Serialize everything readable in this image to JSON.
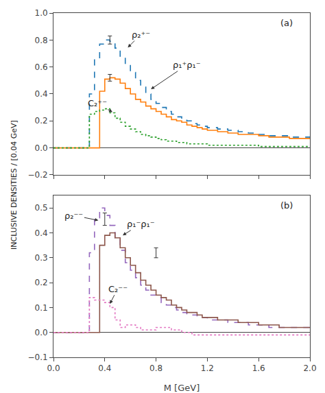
{
  "chart_data": [
    {
      "type": "step",
      "label": "(a)",
      "ylabel": "INCLUSIVE DENSITIES / [0.04 GeV]",
      "xlim": [
        0,
        2.0
      ],
      "xticks": [
        {
          "value": 0,
          "label": "0.0"
        },
        0.4,
        0.8,
        1.2,
        1.6,
        {
          "value": 2.0,
          "label": "2.0"
        }
      ],
      "ylim": [
        -0.2,
        1.0
      ],
      "yticks": [
        -0.2,
        {
          "value": 0,
          "label": "0.0"
        },
        0.2,
        0.4,
        0.6,
        0.8,
        {
          "value": 1.0,
          "label": "1.0"
        }
      ],
      "grid": false,
      "tick_labels": "y",
      "x": [
        0,
        0.04,
        0.08,
        0.12,
        0.16,
        0.2,
        0.24,
        0.28,
        0.32,
        0.36,
        0.4,
        0.44,
        0.48,
        0.52,
        0.56,
        0.6,
        0.64,
        0.68,
        0.72,
        0.76,
        0.8,
        0.84,
        0.88,
        0.92,
        0.96,
        1.0,
        1.04,
        1.08,
        1.12,
        1.16,
        1.2,
        1.24,
        1.28,
        1.32,
        1.36,
        1.4,
        1.44,
        1.48,
        1.52,
        1.56,
        1.6,
        1.64,
        1.68,
        1.72,
        1.76,
        1.8,
        1.84,
        1.88,
        1.92,
        1.96,
        2.0
      ],
      "series": [
        {
          "line_style": "dashed",
          "values": [
            0,
            0,
            0,
            0,
            0,
            0,
            0,
            0.4,
            0.66,
            0.77,
            0.8,
            0.79,
            0.74,
            0.68,
            0.62,
            0.56,
            0.5,
            0.45,
            0.4,
            0.36,
            0.33,
            0.3,
            0.27,
            0.25,
            0.23,
            0.21,
            0.2,
            0.18,
            0.17,
            0.16,
            0.15,
            0.15,
            0.14,
            0.14,
            0.13,
            0.13,
            0.12,
            0.12,
            0.11,
            0.11,
            0.1,
            0.1,
            0.09,
            0.09,
            0.09,
            0.09,
            0.08,
            0.08,
            0.08,
            0.08,
            0.08
          ]
        },
        {
          "line_style": "solid",
          "values": [
            0,
            0,
            0,
            0,
            0,
            0,
            0,
            0,
            0,
            0.42,
            0.51,
            0.52,
            0.51,
            0.48,
            0.44,
            0.4,
            0.36,
            0.34,
            0.31,
            0.29,
            0.27,
            0.25,
            0.23,
            0.21,
            0.2,
            0.19,
            0.17,
            0.16,
            0.15,
            0.14,
            0.13,
            0.13,
            0.12,
            0.12,
            0.11,
            0.11,
            0.1,
            0.1,
            0.1,
            0.1,
            0.09,
            0.09,
            0.08,
            0.08,
            0.08,
            0.08,
            0.07,
            0.07,
            0.07,
            0.07,
            0.07
          ]
        },
        {
          "line_style": "dotted",
          "values": [
            0,
            0,
            0,
            0,
            0,
            0,
            0,
            0.25,
            0.27,
            0.28,
            0.29,
            0.26,
            0.22,
            0.19,
            0.16,
            0.14,
            0.12,
            0.1,
            0.09,
            0.08,
            0.07,
            0.06,
            0.05,
            0.05,
            0.04,
            0.04,
            0.03,
            0.03,
            0.03,
            0.03,
            0.02,
            0.02,
            0.02,
            0.02,
            0.02,
            0.02,
            0.02,
            0.02,
            0.02,
            0.02,
            0.01,
            0.01,
            0.01,
            0.01,
            0.01,
            0.01,
            0.01,
            0.01,
            0.01,
            0.01,
            0.01
          ]
        }
      ],
      "errors": [
        {
          "x": 0.44,
          "y": 0.8,
          "error": 0.03
        },
        {
          "x": 0.44,
          "y": 0.52,
          "error": 0.025
        }
      ],
      "annotations": [
        {
          "text": "ρ₂⁺⁻",
          "x": 0.58,
          "y": 0.745,
          "text_x": 0.68,
          "text_y": 0.84
        },
        {
          "text": "ρ₁⁺ρ₁⁻",
          "x": 0.76,
          "y": 0.435,
          "text_x": 1.04,
          "text_y": 0.615
        },
        {
          "text": "C₂⁺⁻",
          "x": 0.46,
          "y": 0.265,
          "text_x": 0.34,
          "text_y": 0.33
        }
      ]
    },
    {
      "type": "step",
      "label": "(b)",
      "xlabel": "M [GeV]",
      "xlim": [
        0,
        2.0
      ],
      "xticks": [
        {
          "value": 0,
          "label": "0.0"
        },
        0.4,
        0.8,
        1.2,
        1.6,
        {
          "value": 2.0,
          "label": "2.0"
        }
      ],
      "ylim": [
        -0.1,
        0.55
      ],
      "yticks": [
        -0.1,
        {
          "value": 0,
          "label": "0.0"
        },
        0.1,
        0.2,
        0.3,
        0.4,
        0.5
      ],
      "grid": false,
      "x": [
        0,
        0.04,
        0.08,
        0.12,
        0.16,
        0.2,
        0.24,
        0.28,
        0.32,
        0.36,
        0.4,
        0.44,
        0.48,
        0.52,
        0.56,
        0.6,
        0.64,
        0.68,
        0.72,
        0.76,
        0.8,
        0.84,
        0.88,
        0.92,
        0.96,
        1.0,
        1.04,
        1.08,
        1.12,
        1.16,
        1.2,
        1.24,
        1.28,
        1.32,
        1.36,
        1.4,
        1.44,
        1.48,
        1.52,
        1.56,
        1.6,
        1.64,
        1.68,
        1.72,
        1.76,
        1.8,
        1.84,
        1.88,
        1.92,
        1.96,
        2.0
      ],
      "series": [
        {
          "line_style": "dashed",
          "values": [
            0,
            0,
            0,
            0,
            0,
            0,
            0,
            0.32,
            0.46,
            0.5,
            0.47,
            0.43,
            0.38,
            0.33,
            0.28,
            0.25,
            0.22,
            0.19,
            0.17,
            0.15,
            0.14,
            0.12,
            0.11,
            0.1,
            0.09,
            0.08,
            0.07,
            0.07,
            0.06,
            0.06,
            0.05,
            0.05,
            0.05,
            0.05,
            0.04,
            0.04,
            0.04,
            0.04,
            0.03,
            0.03,
            0.03,
            0.03,
            0.02,
            0.02,
            0.02,
            0.02,
            0.02,
            0.02,
            0.02,
            0.02,
            0.02
          ]
        },
        {
          "line_style": "solid",
          "values": [
            0,
            0,
            0,
            0,
            0,
            0,
            0,
            0,
            0,
            0.35,
            0.39,
            0.4,
            0.38,
            0.34,
            0.3,
            0.27,
            0.24,
            0.21,
            0.19,
            0.17,
            0.15,
            0.14,
            0.13,
            0.11,
            0.1,
            0.09,
            0.08,
            0.08,
            0.07,
            0.06,
            0.06,
            0.06,
            0.05,
            0.05,
            0.05,
            0.05,
            0.04,
            0.04,
            0.04,
            0.04,
            0.03,
            0.03,
            0.03,
            0.03,
            0.02,
            0.02,
            0.02,
            0.02,
            0.02,
            0.02,
            0.02
          ]
        },
        {
          "line_style": "dotted",
          "values": [
            0,
            0,
            0,
            0,
            0,
            0,
            0,
            0.14,
            0.13,
            0.13,
            0.12,
            0.1,
            0.05,
            0.02,
            0.03,
            0.03,
            0.02,
            0.01,
            0.01,
            0.01,
            0.02,
            0.02,
            0.02,
            0.01,
            0.01,
            0,
            0,
            -0.01,
            -0.01,
            -0.01,
            -0.01,
            -0.01,
            -0.01,
            -0.01,
            -0.01,
            -0.01,
            -0.01,
            -0.01,
            -0.01,
            -0.01,
            -0.01,
            -0.01,
            -0.01,
            -0.01,
            -0.01,
            -0.01,
            -0.01,
            -0.01,
            -0.01,
            -0.01,
            -0.01
          ]
        }
      ],
      "errors": [
        {
          "x": 0.4,
          "y": 0.455,
          "error": 0.025
        },
        {
          "x": 0.8,
          "y": 0.32,
          "error": 0.02
        }
      ],
      "annotations": [
        {
          "text": "ρ₂⁻⁻",
          "x": 0.35,
          "y": 0.45,
          "text_x": 0.16,
          "text_y": 0.47
        },
        {
          "text": "ρ₁⁻ρ₁⁻",
          "x": 0.54,
          "y": 0.39,
          "text_x": 0.68,
          "text_y": 0.435
        },
        {
          "text": "C₂⁻⁻",
          "x": 0.44,
          "y": 0.115,
          "text_x": 0.5,
          "text_y": 0.175
        }
      ]
    }
  ]
}
